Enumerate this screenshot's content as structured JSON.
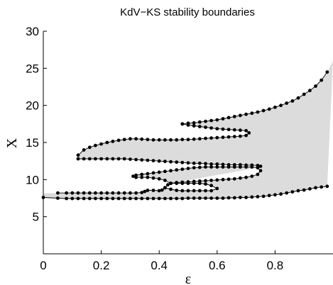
{
  "chart_data": {
    "type": "scatter",
    "title": "KdV−KS stability boundaries",
    "xlabel": "ε",
    "ylabel": "X",
    "xlim": [
      0,
      1
    ],
    "ylim": [
      0,
      30
    ],
    "xticks": [
      "0",
      "0.2",
      "0.4",
      "0.6",
      "0.8"
    ],
    "yticks": [
      "5",
      "10",
      "15",
      "20",
      "25",
      "30"
    ],
    "fill_color": "#dcdcdc",
    "line_color": "#000000",
    "grid": false,
    "series": [
      {
        "x": [
          0.0,
          0.05,
          0.08,
          0.1,
          0.12,
          0.14,
          0.16,
          0.18,
          0.2,
          0.22,
          0.24,
          0.26,
          0.28,
          0.3,
          0.32,
          0.34,
          0.36,
          0.38,
          0.4,
          0.42,
          0.44,
          0.46,
          0.48,
          0.5,
          0.52,
          0.54,
          0.56,
          0.58,
          0.6,
          0.62,
          0.64,
          0.66,
          0.68,
          0.7,
          0.72,
          0.74,
          0.76,
          0.78,
          0.8,
          0.82,
          0.84,
          0.86,
          0.88,
          0.9,
          0.92,
          0.94,
          0.96,
          0.98
        ],
        "y": [
          7.6,
          7.5,
          7.45,
          7.45,
          7.45,
          7.45,
          7.45,
          7.45,
          7.45,
          7.45,
          7.45,
          7.45,
          7.45,
          7.45,
          7.45,
          7.45,
          7.45,
          7.45,
          7.45,
          7.45,
          7.45,
          7.45,
          7.45,
          7.5,
          7.5,
          7.5,
          7.5,
          7.5,
          7.5,
          7.5,
          7.55,
          7.55,
          7.6,
          7.6,
          7.65,
          7.7,
          7.75,
          7.85,
          7.95,
          8.05,
          8.2,
          8.35,
          8.5,
          8.6,
          8.75,
          8.9,
          9.0,
          9.1
        ]
      },
      {
        "x": [
          0.05,
          0.08,
          0.1,
          0.12,
          0.14,
          0.16,
          0.18,
          0.2,
          0.22,
          0.24,
          0.26,
          0.28,
          0.3,
          0.32,
          0.34,
          0.35,
          0.36,
          0.38,
          0.4,
          0.41,
          0.42
        ],
        "y": [
          8.2,
          8.2,
          8.2,
          8.2,
          8.2,
          8.2,
          8.2,
          8.2,
          8.2,
          8.2,
          8.2,
          8.2,
          8.2,
          8.2,
          8.25,
          8.4,
          8.55,
          8.55,
          8.5,
          8.6,
          8.9
        ]
      },
      {
        "x": [
          0.42,
          0.43,
          0.44,
          0.46,
          0.48,
          0.5,
          0.52,
          0.54,
          0.56,
          0.58,
          0.6,
          0.58,
          0.56,
          0.54,
          0.52,
          0.5,
          0.48,
          0.46,
          0.44,
          0.42
        ],
        "y": [
          8.9,
          9.3,
          9.5,
          9.5,
          9.5,
          9.5,
          9.5,
          9.5,
          9.4,
          9.2,
          8.8,
          8.5,
          8.5,
          8.5,
          8.5,
          8.5,
          8.5,
          8.55,
          8.7,
          8.9
        ]
      },
      {
        "x": [
          0.44,
          0.46,
          0.48,
          0.5,
          0.52,
          0.54,
          0.56,
          0.58,
          0.6,
          0.62,
          0.64,
          0.66,
          0.68,
          0.7,
          0.72,
          0.74,
          0.75,
          0.74,
          0.72,
          0.7,
          0.68,
          0.66,
          0.64,
          0.62,
          0.6,
          0.58,
          0.56,
          0.54,
          0.52,
          0.5,
          0.48,
          0.46,
          0.44,
          0.42,
          0.4,
          0.38,
          0.36,
          0.34,
          0.32,
          0.31,
          0.32,
          0.34,
          0.36,
          0.38,
          0.4,
          0.42,
          0.44
        ],
        "y": [
          9.5,
          9.6,
          9.65,
          9.7,
          9.75,
          9.8,
          9.85,
          9.9,
          9.95,
          10.0,
          10.05,
          10.1,
          10.2,
          10.3,
          10.45,
          10.7,
          11.2,
          11.6,
          11.7,
          11.7,
          11.7,
          11.7,
          11.7,
          11.7,
          11.7,
          11.7,
          11.7,
          11.65,
          11.6,
          11.5,
          11.4,
          11.3,
          11.2,
          11.1,
          11.0,
          10.9,
          10.8,
          10.7,
          10.6,
          10.45,
          10.3,
          10.3,
          10.3,
          10.2,
          10.1,
          9.9,
          9.5
        ]
      },
      {
        "x": [
          0.12,
          0.14,
          0.16,
          0.18,
          0.2,
          0.22,
          0.24,
          0.26,
          0.28,
          0.3,
          0.32,
          0.34,
          0.36,
          0.38,
          0.4,
          0.42,
          0.44,
          0.46,
          0.48,
          0.5,
          0.52,
          0.54,
          0.56,
          0.58,
          0.6,
          0.62,
          0.64,
          0.66,
          0.68,
          0.7,
          0.72,
          0.74,
          0.75
        ],
        "y": [
          12.8,
          12.8,
          12.8,
          12.8,
          12.8,
          12.8,
          12.8,
          12.8,
          12.8,
          12.75,
          12.7,
          12.65,
          12.6,
          12.55,
          12.5,
          12.45,
          12.4,
          12.35,
          12.3,
          12.25,
          12.2,
          12.2,
          12.15,
          12.1,
          12.1,
          12.05,
          12.0,
          12.0,
          12.0,
          11.95,
          11.95,
          11.9,
          11.8
        ]
      },
      {
        "x": [
          0.12,
          0.14,
          0.16,
          0.18,
          0.2,
          0.22,
          0.24,
          0.26,
          0.28,
          0.3,
          0.32,
          0.34,
          0.36,
          0.38,
          0.4,
          0.42,
          0.44,
          0.46,
          0.48,
          0.5,
          0.52,
          0.54,
          0.56,
          0.58,
          0.6,
          0.62,
          0.64,
          0.66,
          0.68,
          0.7,
          0.71,
          0.7,
          0.68,
          0.66,
          0.64,
          0.62,
          0.6,
          0.58,
          0.56,
          0.54,
          0.52,
          0.5,
          0.48
        ],
        "y": [
          13.3,
          14.0,
          14.35,
          14.6,
          14.8,
          15.0,
          15.15,
          15.3,
          15.4,
          15.5,
          15.5,
          15.45,
          15.4,
          15.35,
          15.35,
          15.35,
          15.35,
          15.35,
          15.4,
          15.4,
          15.45,
          15.5,
          15.55,
          15.6,
          15.65,
          15.7,
          15.75,
          15.8,
          15.85,
          15.95,
          16.3,
          16.6,
          16.65,
          16.7,
          16.75,
          16.8,
          16.85,
          16.95,
          17.05,
          17.15,
          17.25,
          17.35,
          17.5
        ]
      },
      {
        "x": [
          0.48,
          0.5,
          0.52,
          0.54,
          0.56,
          0.58,
          0.6,
          0.62,
          0.64,
          0.66,
          0.68,
          0.7,
          0.72,
          0.74,
          0.76,
          0.78,
          0.8,
          0.82,
          0.84,
          0.86,
          0.88,
          0.9,
          0.92,
          0.94,
          0.96,
          0.98
        ],
        "y": [
          17.5,
          17.6,
          17.65,
          17.75,
          17.85,
          17.95,
          18.05,
          18.2,
          18.35,
          18.5,
          18.65,
          18.8,
          18.95,
          19.1,
          19.3,
          19.5,
          19.75,
          20.0,
          20.3,
          20.6,
          21.0,
          21.5,
          22.0,
          22.6,
          23.4,
          24.5
        ]
      }
    ]
  }
}
